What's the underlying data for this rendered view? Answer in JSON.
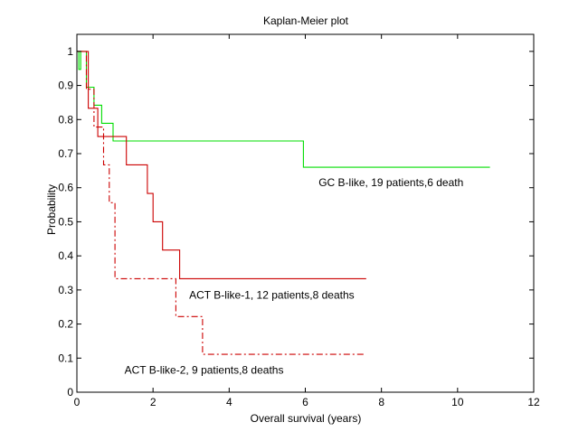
{
  "chart_data": {
    "type": "line",
    "title": "Kaplan-Meier plot",
    "xlabel": "Overall survival (years)",
    "ylabel": "Probability",
    "xlim": [
      0,
      12
    ],
    "ylim": [
      0,
      1.05
    ],
    "x_ticks": [
      0,
      2,
      4,
      6,
      8,
      10,
      12
    ],
    "x_tick_labels": [
      "0",
      "2",
      "4",
      "6",
      "8",
      "10",
      "12"
    ],
    "y_ticks": [
      0,
      0.1,
      0.2,
      0.3,
      0.4,
      0.5,
      0.6,
      0.7,
      0.8,
      0.9,
      1
    ],
    "y_tick_labels": [
      "0",
      "0.1",
      "0.2",
      "0.3",
      "0.4",
      "0.5",
      "0.6",
      "0.7",
      "0.8",
      "0.9",
      "1"
    ],
    "grid": false,
    "series": [
      {
        "name": "GC B-like, 19 patients,6 death",
        "color": "#00dd00",
        "dash": "solid",
        "x": [
          0,
          0.05,
          0.1,
          0.25,
          0.45,
          0.65,
          0.95,
          5.95,
          10.85
        ],
        "y": [
          1.0,
          0.947,
          1.0,
          0.895,
          0.842,
          0.789,
          0.737,
          0.66,
          0.66
        ]
      },
      {
        "name": "ACT B-like-1, 12 patients,8 deaths",
        "color": "#cc0000",
        "dash": "solid",
        "x": [
          0,
          0.3,
          0.45,
          0.55,
          1.3,
          1.85,
          2.0,
          2.25,
          2.7,
          7.6
        ],
        "y": [
          1.0,
          0.833,
          0.833,
          0.75,
          0.667,
          0.583,
          0.5,
          0.417,
          0.333,
          0.333
        ]
      },
      {
        "name": "ACT B-like-2, 9 patients,8 deaths",
        "color": "#cc0000",
        "dash": "dashdot",
        "x": [
          0,
          0.25,
          0.45,
          0.7,
          0.85,
          1.0,
          2.6,
          3.3,
          7.6
        ],
        "y": [
          1.0,
          0.889,
          0.778,
          0.667,
          0.556,
          0.333,
          0.222,
          0.111,
          0.111
        ]
      }
    ],
    "annotations": [
      {
        "text": "GC B-like, 19 patients,6 death",
        "x": 6.35,
        "y": 0.605
      },
      {
        "text": "ACT B-like-1, 12 patients,8 deaths",
        "x": 2.95,
        "y": 0.275
      },
      {
        "text": "ACT B-like-2, 9 patients,8 deaths",
        "x": 1.25,
        "y": 0.055
      }
    ]
  }
}
